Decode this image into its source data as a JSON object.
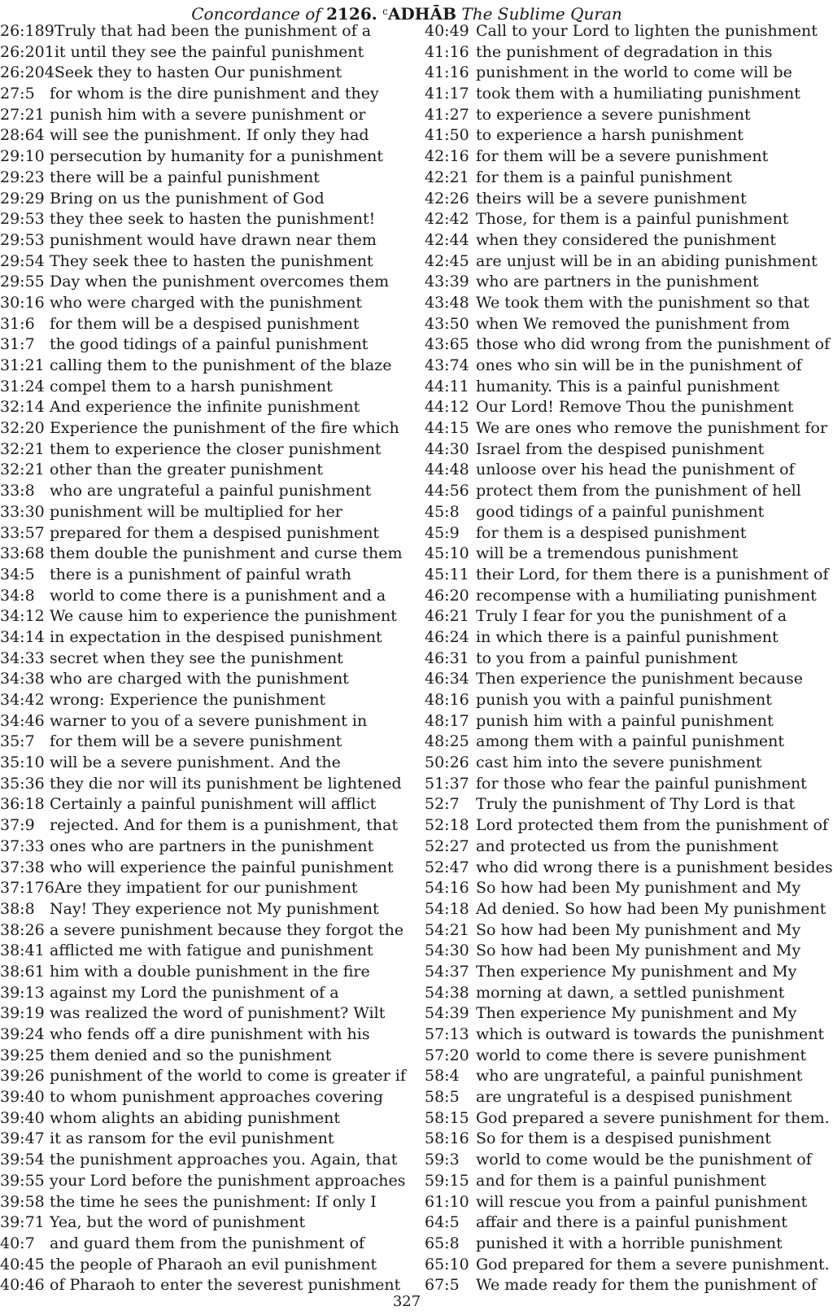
{
  "header": {
    "prefix": "Concordance of",
    "number": "2126.",
    "ain": "c",
    "word": "ADHĀB",
    "suffix": "The Sublime Quran"
  },
  "columns": {
    "left": [
      {
        "ref": "26:189",
        "text": "Truly that had been the punishment of a"
      },
      {
        "ref": "26:201",
        "text": "it until they see the painful punishment"
      },
      {
        "ref": "26:204",
        "text": "Seek they to hasten Our punishment"
      },
      {
        "ref": "27:5",
        "text": "for whom is the dire punishment and they"
      },
      {
        "ref": "27:21",
        "text": "punish him with a severe punishment or"
      },
      {
        "ref": "28:64",
        "text": "will see the punishment. If only they had"
      },
      {
        "ref": "29:10",
        "text": "persecution by humanity for a punishment"
      },
      {
        "ref": "29:23",
        "text": "there will be a painful punishment"
      },
      {
        "ref": "29:29",
        "text": "Bring on us the punishment of God"
      },
      {
        "ref": "29:53",
        "text": "they thee seek to hasten the punishment!"
      },
      {
        "ref": "29:53",
        "text": "punishment would have drawn near them"
      },
      {
        "ref": "29:54",
        "text": "They seek thee to hasten the punishment"
      },
      {
        "ref": "29:55",
        "text": "Day when the punishment overcomes them"
      },
      {
        "ref": "30:16",
        "text": "who were charged with the punishment"
      },
      {
        "ref": "31:6",
        "text": "for them will be a despised punishment"
      },
      {
        "ref": "31:7",
        "text": "the good tidings of a painful punishment"
      },
      {
        "ref": "31:21",
        "text": "calling them to the punishment of the blaze"
      },
      {
        "ref": "31:24",
        "text": "compel them to a harsh punishment"
      },
      {
        "ref": "32:14",
        "text": "And experience the infinite punishment"
      },
      {
        "ref": "32:20",
        "text": "Experience the punishment of the fire which"
      },
      {
        "ref": "32:21",
        "text": "them to experience the closer punishment"
      },
      {
        "ref": "32:21",
        "text": "other than the greater punishment"
      },
      {
        "ref": "33:8",
        "text": "who are ungrateful a painful punishment"
      },
      {
        "ref": "33:30",
        "text": "punishment will be multiplied for her"
      },
      {
        "ref": "33:57",
        "text": "prepared for them a despised punishment"
      },
      {
        "ref": "33:68",
        "text": "them double the punishment and curse them"
      },
      {
        "ref": "34:5",
        "text": "there is a punishment of painful wrath"
      },
      {
        "ref": "34:8",
        "text": "world to come there is a punishment and a"
      },
      {
        "ref": "34:12",
        "text": "We cause him to experience the punishment"
      },
      {
        "ref": "34:14",
        "text": "in expectation in the despised punishment"
      },
      {
        "ref": "34:33",
        "text": "secret when they see the punishment"
      },
      {
        "ref": "34:38",
        "text": "who are charged with the punishment"
      },
      {
        "ref": "34:42",
        "text": "wrong: Experience the punishment"
      },
      {
        "ref": "34:46",
        "text": "warner to you of a severe punishment in"
      },
      {
        "ref": "35:7",
        "text": "for them will be a severe punishment"
      },
      {
        "ref": "35:10",
        "text": "will be a severe punishment. And the"
      },
      {
        "ref": "35:36",
        "text": "they die nor will its punishment be lightened"
      },
      {
        "ref": "36:18",
        "text": "Certainly a painful punishment will afflict"
      },
      {
        "ref": "37:9",
        "text": "rejected. And for them is a punishment, that"
      },
      {
        "ref": "37:33",
        "text": "ones who are partners in the punishment"
      },
      {
        "ref": "37:38",
        "text": "who will experience the painful punishment"
      },
      {
        "ref": "37:176",
        "text": "Are they impatient for our punishment"
      },
      {
        "ref": "38:8",
        "text": "Nay! They experience not My punishment"
      },
      {
        "ref": "38:26",
        "text": "a severe punishment because they forgot the"
      },
      {
        "ref": "38:41",
        "text": "afflicted me with fatigue and punishment"
      },
      {
        "ref": "38:61",
        "text": "him with a double punishment in the fire"
      },
      {
        "ref": "39:13",
        "text": "against my Lord the punishment of a"
      },
      {
        "ref": "39:19",
        "text": "was realized the word of punishment? Wilt"
      },
      {
        "ref": "39:24",
        "text": "who fends off a dire punishment with his"
      },
      {
        "ref": "39:25",
        "text": "them denied and so the punishment"
      },
      {
        "ref": "39:26",
        "text": "punishment of the world to come is greater if"
      },
      {
        "ref": "39:40",
        "text": "to whom punishment approaches covering"
      },
      {
        "ref": "39:40",
        "text": "whom alights an abiding punishment"
      },
      {
        "ref": "39:47",
        "text": "it as ransom for the evil punishment"
      },
      {
        "ref": "39:54",
        "text": "the punishment approaches you. Again, that"
      },
      {
        "ref": "39:55",
        "text": "your Lord before the punishment approaches"
      },
      {
        "ref": "39:58",
        "text": "the time he sees the punishment: If only I"
      },
      {
        "ref": "39:71",
        "text": "Yea, but the word of punishment"
      },
      {
        "ref": "40:7",
        "text": "and guard them from the punishment of"
      },
      {
        "ref": "40:45",
        "text": "the people of Pharaoh an evil punishment"
      },
      {
        "ref": "40:46",
        "text": "of Pharaoh to enter the severest punishment"
      }
    ],
    "right": [
      {
        "ref": "40:49",
        "text": "Call to your Lord to lighten the punishment"
      },
      {
        "ref": "41:16",
        "text": "the punishment of degradation in this"
      },
      {
        "ref": "41:16",
        "text": "punishment in the world to come will be"
      },
      {
        "ref": "41:17",
        "text": "took them with a humiliating punishment"
      },
      {
        "ref": "41:27",
        "text": "to experience a severe punishment"
      },
      {
        "ref": "41:50",
        "text": "to experience a harsh punishment"
      },
      {
        "ref": "42:16",
        "text": "for them will be a severe punishment"
      },
      {
        "ref": "42:21",
        "text": "for them is a painful punishment"
      },
      {
        "ref": "42:26",
        "text": "theirs will be a severe punishment"
      },
      {
        "ref": "42:42",
        "text": "Those, for them is a painful punishment"
      },
      {
        "ref": "42:44",
        "text": "when they considered the punishment"
      },
      {
        "ref": "42:45",
        "text": "are unjust will be in an abiding punishment"
      },
      {
        "ref": "43:39",
        "text": "who are partners in the punishment"
      },
      {
        "ref": "43:48",
        "text": "We took them with the punishment so that"
      },
      {
        "ref": "43:50",
        "text": "when We removed the punishment from"
      },
      {
        "ref": "43:65",
        "text": "those who did wrong from the punishment of"
      },
      {
        "ref": "43:74",
        "text": "ones who sin will be in the punishment of"
      },
      {
        "ref": "44:11",
        "text": "humanity. This is a painful punishment"
      },
      {
        "ref": "44:12",
        "text": "Our Lord! Remove Thou the punishment"
      },
      {
        "ref": "44:15",
        "text": "We are ones who remove the punishment for"
      },
      {
        "ref": "44:30",
        "text": "Israel from the despised punishment"
      },
      {
        "ref": "44:48",
        "text": "unloose over his head the punishment of"
      },
      {
        "ref": "44:56",
        "text": "protect them from the punishment of hell"
      },
      {
        "ref": "45:8",
        "text": "good tidings of a painful punishment"
      },
      {
        "ref": "45:9",
        "text": "for them is a despised punishment"
      },
      {
        "ref": "45:10",
        "text": "will be a tremendous punishment"
      },
      {
        "ref": "45:11",
        "text": "their Lord, for them there is a punishment of"
      },
      {
        "ref": "46:20",
        "text": "recompense with a humiliating punishment"
      },
      {
        "ref": "46:21",
        "text": "Truly I fear for you the punishment of a"
      },
      {
        "ref": "46:24",
        "text": "in which there is a painful punishment"
      },
      {
        "ref": "46:31",
        "text": "to you from a painful punishment"
      },
      {
        "ref": "46:34",
        "text": "Then experience the punishment because"
      },
      {
        "ref": "48:16",
        "text": "punish you with a painful punishment"
      },
      {
        "ref": "48:17",
        "text": "punish him with a painful punishment"
      },
      {
        "ref": "48:25",
        "text": "among them with a painful punishment"
      },
      {
        "ref": "50:26",
        "text": "cast him into the severe punishment"
      },
      {
        "ref": "51:37",
        "text": "for those who fear the painful punishment"
      },
      {
        "ref": "52:7",
        "text": "Truly the punishment of Thy Lord is that"
      },
      {
        "ref": "52:18",
        "text": "Lord protected them from the punishment of"
      },
      {
        "ref": "52:27",
        "text": "and protected us from the punishment"
      },
      {
        "ref": "52:47",
        "text": "who did wrong there is a punishment besides"
      },
      {
        "ref": "54:16",
        "text": "So how had been My punishment and My"
      },
      {
        "ref": "54:18",
        "text": "Ad denied. So how had been My punishment"
      },
      {
        "ref": "54:21",
        "text": "So how had been My punishment and My"
      },
      {
        "ref": "54:30",
        "text": "So how had been My punishment and My"
      },
      {
        "ref": "54:37",
        "text": "Then experience My punishment and My"
      },
      {
        "ref": "54:38",
        "text": "morning at dawn, a settled punishment"
      },
      {
        "ref": "54:39",
        "text": "Then experience My punishment and My"
      },
      {
        "ref": "57:13",
        "text": "which is outward is towards the punishment"
      },
      {
        "ref": "57:20",
        "text": "world to come there is severe punishment"
      },
      {
        "ref": "58:4",
        "text": "who are ungrateful, a painful punishment"
      },
      {
        "ref": "58:5",
        "text": "are ungrateful is a despised punishment"
      },
      {
        "ref": "58:15",
        "text": "God prepared a severe punishment for them."
      },
      {
        "ref": "58:16",
        "text": "So for them is a despised punishment"
      },
      {
        "ref": "59:3",
        "text": "world to come would be the punishment of"
      },
      {
        "ref": "59:15",
        "text": "and for them is a painful punishment"
      },
      {
        "ref": "61:10",
        "text": "will rescue you from a painful punishment"
      },
      {
        "ref": "64:5",
        "text": "affair and there is a painful punishment"
      },
      {
        "ref": "65:8",
        "text": "punished it with a horrible punishment"
      },
      {
        "ref": "65:10",
        "text": "God prepared for them a severe punishment."
      },
      {
        "ref": "67:5",
        "text": "We made ready for them the punishment of"
      }
    ]
  },
  "footer": {
    "page_number": "327"
  }
}
